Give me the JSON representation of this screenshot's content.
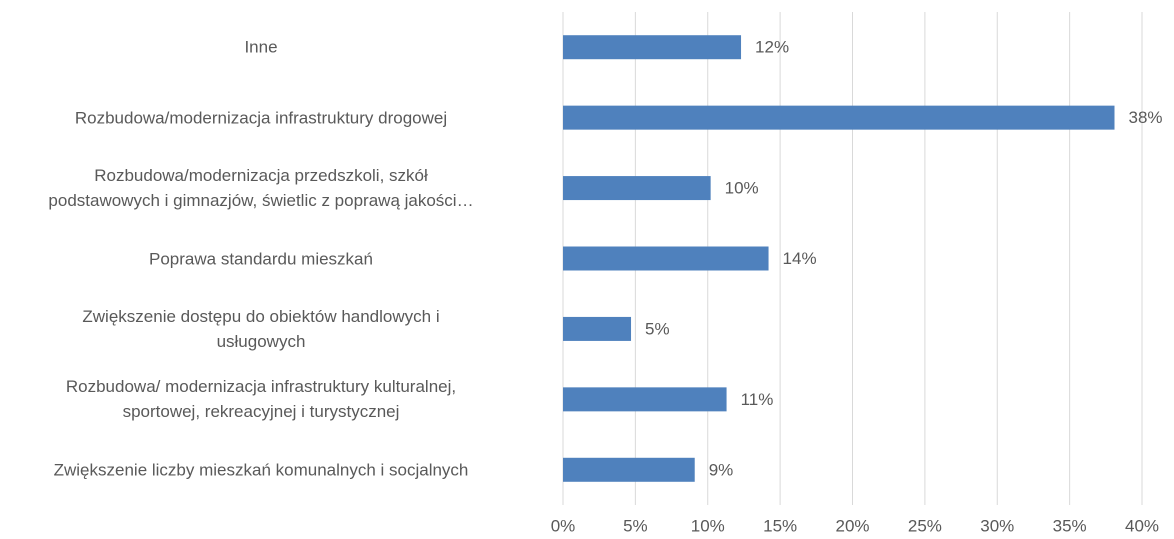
{
  "chart_data": {
    "type": "barh",
    "categories": [
      "Inne",
      "Rozbudowa/modernizacja infrastruktury drogowej",
      "Rozbudowa/modernizacja przedszkoli, szkół\npodstawowych i gimnazjów, świetlic z poprawą jakości…",
      "Poprawa standardu mieszkań",
      "Zwiększenie dostępu do obiektów handlowych i\nusługowych",
      "Rozbudowa/ modernizacja infrastruktury kulturalnej,\nsportowej, rekreacyjnej i turystycznej",
      "Zwiększenie liczby mieszkań komunalnych i socjalnych"
    ],
    "values": [
      12.3,
      38.1,
      10.2,
      14.2,
      4.7,
      11.3,
      9.1
    ],
    "value_labels": [
      "12%",
      "38%",
      "10%",
      "14%",
      "5%",
      "11%",
      "9%"
    ],
    "color": "#4f81bd",
    "xlim": [
      0,
      40
    ],
    "xticks": [
      {
        "value": 0,
        "label": "0%"
      },
      {
        "value": 5,
        "label": "5%"
      },
      {
        "value": 10,
        "label": "10%"
      },
      {
        "value": 15,
        "label": "15%"
      },
      {
        "value": 20,
        "label": "20%"
      },
      {
        "value": 25,
        "label": "25%"
      },
      {
        "value": 30,
        "label": "30%"
      },
      {
        "value": 35,
        "label": "35%"
      },
      {
        "value": 40,
        "label": "40%"
      }
    ],
    "grid": true
  }
}
